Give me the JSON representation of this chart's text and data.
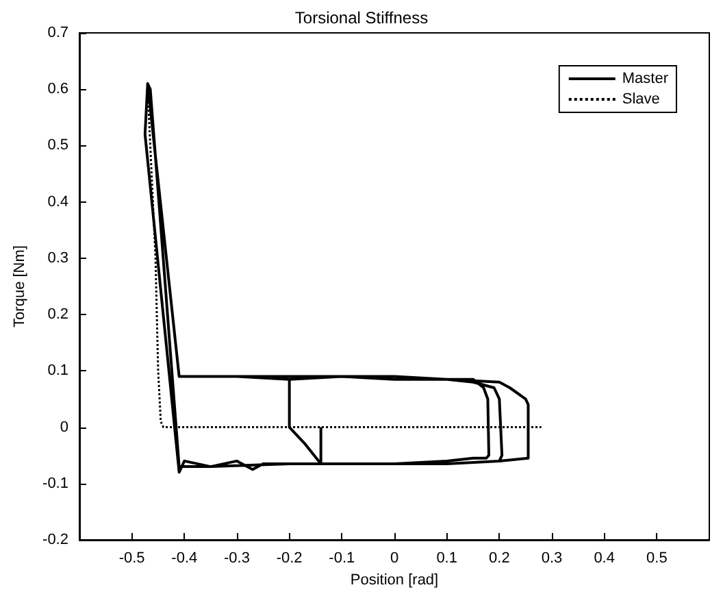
{
  "chart_data": {
    "type": "line",
    "title": "Torsional Stiffness",
    "xlabel": "Position [rad]",
    "ylabel": "Torque [Nm]",
    "xlim": [
      -0.6,
      0.6
    ],
    "xticks": [
      -0.5,
      -0.4,
      -0.3,
      -0.2,
      -0.1,
      0,
      0.1,
      0.2,
      0.3,
      0.4,
      0.5
    ],
    "ylim": [
      -0.2,
      0.7
    ],
    "yticks": [
      -0.2,
      -0.1,
      0,
      0.1,
      0.2,
      0.3,
      0.4,
      0.5,
      0.6,
      0.7
    ],
    "grid": false,
    "legend": "top right",
    "marker": "none",
    "series": [
      {
        "name": "Master",
        "color": "#000000",
        "line_style": "solid",
        "x": [
          -0.14,
          -0.14,
          -0.1,
          0,
          0.1,
          0.15,
          0.175,
          0.18,
          0.178,
          0.17,
          0.15,
          0.1,
          0,
          -0.1,
          -0.2,
          -0.3,
          -0.4,
          -0.41,
          -0.47,
          -0.475,
          -0.41,
          -0.4,
          -0.35,
          -0.3,
          -0.27,
          -0.25,
          -0.2,
          -0.1,
          0,
          0.1,
          0.2,
          0.205,
          0.2,
          0.19,
          0.15,
          0.1,
          0,
          -0.1,
          -0.2,
          -0.3,
          -0.4,
          -0.41,
          -0.47,
          -0.465,
          -0.41,
          -0.35,
          -0.2,
          0,
          0.1,
          0.2,
          0.255,
          0.255,
          0.25,
          0.22,
          0.2,
          0.1,
          0,
          -0.1,
          -0.2,
          -0.2,
          -0.17,
          -0.14
        ],
        "values": [
          0,
          -0.065,
          -0.065,
          -0.065,
          -0.06,
          -0.055,
          -0.055,
          -0.05,
          0.05,
          0.07,
          0.085,
          0.085,
          0.085,
          0.09,
          0.09,
          0.09,
          0.09,
          0.09,
          0.61,
          0.52,
          -0.08,
          -0.06,
          -0.07,
          -0.06,
          -0.075,
          -0.065,
          -0.065,
          -0.065,
          -0.065,
          -0.065,
          -0.06,
          -0.05,
          0.05,
          0.07,
          0.08,
          0.085,
          0.09,
          0.09,
          0.085,
          0.09,
          0.09,
          0.09,
          0.61,
          0.6,
          -0.07,
          -0.07,
          -0.065,
          -0.065,
          -0.065,
          -0.06,
          -0.055,
          0.04,
          0.05,
          0.07,
          0.08,
          0.085,
          0.085,
          0.09,
          0.085,
          0,
          -0.03,
          -0.065
        ]
      },
      {
        "name": "Slave",
        "color": "#000000",
        "line_style": "dotted",
        "x": [
          -0.47,
          -0.455,
          -0.45,
          -0.445,
          -0.44,
          -0.3,
          -0.1,
          0.1,
          0.28
        ],
        "values": [
          0.6,
          0.3,
          0.1,
          0.01,
          0,
          0,
          0,
          0,
          0
        ]
      }
    ]
  }
}
